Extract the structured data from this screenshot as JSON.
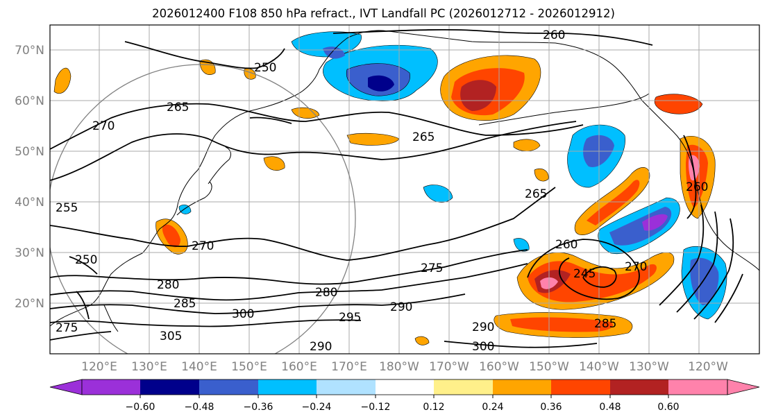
{
  "title": "2026012400 F108 850 hPa refract., IVT Landfall PC (2026012712 - 2026012912)",
  "map": {
    "lat_labels": [
      "70°N",
      "60°N",
      "50°N",
      "40°N",
      "30°N",
      "20°N"
    ],
    "lon_labels": [
      "120°E",
      "130°E",
      "140°E",
      "150°E",
      "160°E",
      "170°E",
      "180°W",
      "170°W",
      "160°W",
      "150°W",
      "140°W",
      "130°W",
      "120°W"
    ],
    "contour_labels": [
      "260",
      "250",
      "265",
      "270",
      "265",
      "265",
      "260",
      "270",
      "250",
      "255",
      "280",
      "285",
      "300",
      "275",
      "280",
      "290",
      "295",
      "290",
      "260",
      "245",
      "285",
      "300",
      "270",
      "275",
      "290",
      "305"
    ]
  },
  "colorbar": {
    "tick_labels": [
      "−0.60",
      "−0.48",
      "−0.36",
      "−0.24",
      "−0.12",
      "0.12",
      "0.24",
      "0.36",
      "0.48",
      "0.60"
    ],
    "colors": [
      "#9b30d9",
      "#00008b",
      "#3a5fcd",
      "#00bfff",
      "#b0e2ff",
      "#ffffff",
      "#fff08a",
      "#ffa500",
      "#ff4500",
      "#b22222",
      "#ff82ab"
    ]
  }
}
